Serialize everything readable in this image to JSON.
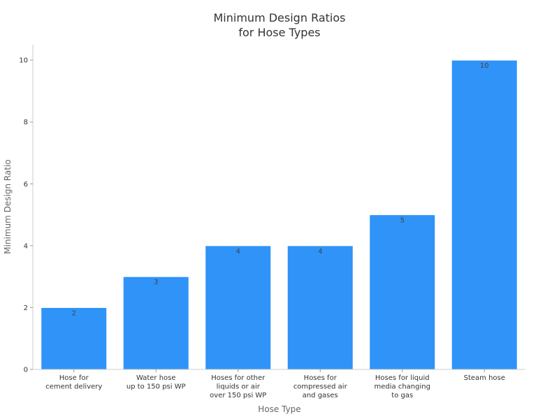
{
  "chart_data": {
    "type": "bar",
    "title": [
      "Minimum Design Ratios",
      "for Hose Types"
    ],
    "xlabel": "Hose Type",
    "ylabel": "Minimum Design Ratio",
    "categories": [
      [
        "Hose for",
        "cement delivery"
      ],
      [
        "Water hose",
        "up to 150 psi WP"
      ],
      [
        "Hoses for other",
        "liquids or air",
        "over 150 psi WP"
      ],
      [
        "Hoses for",
        "compressed air",
        "and gases"
      ],
      [
        "Hoses for liquid",
        "media changing",
        "to gas"
      ],
      [
        "Steam hose"
      ]
    ],
    "values": [
      2,
      3,
      4,
      4,
      5,
      10
    ],
    "data_labels": [
      "2",
      "3",
      "4",
      "4",
      "5",
      "10"
    ],
    "ylim": [
      0,
      10.5
    ],
    "yticks": [
      0,
      2,
      4,
      6,
      8,
      10
    ],
    "grid": false,
    "legend": "none",
    "colors": {
      "bar": "#2f93f8",
      "bar_edge": "#ffffff"
    }
  }
}
